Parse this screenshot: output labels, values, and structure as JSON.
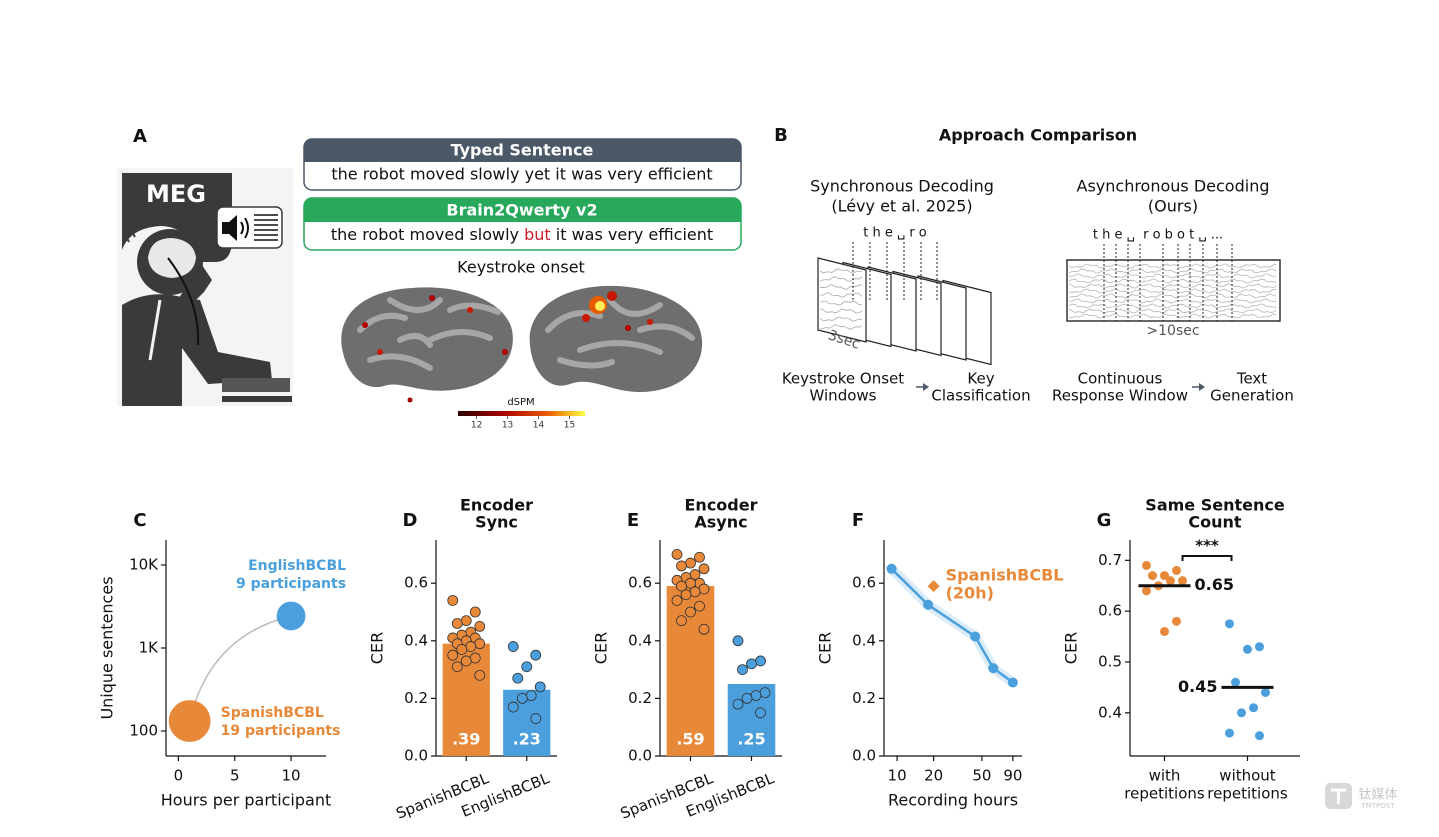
{
  "panel_a": {
    "label": "A",
    "illustration_label": "MEG",
    "typed": {
      "title": "Typed Sentence",
      "text": "the robot moved slowly yet it was very efficient"
    },
    "decoded": {
      "title": "Brain2Qwerty v2",
      "segments": [
        "the robot moved slowly",
        "but",
        "it was very efficient"
      ]
    },
    "brain_title": "Keystroke onset",
    "colorbar": {
      "label": "dSPM",
      "lim": [
        11.4,
        15.5
      ],
      "ticks": [
        12,
        13,
        14,
        15
      ]
    }
  },
  "panel_b": {
    "label": "B",
    "title": "Approach Comparison",
    "sync": {
      "title": [
        "Synchronous Decoding",
        "(Lévy et al. 2025)"
      ],
      "letters": "t h e ␣ r o",
      "window": "3sec",
      "steps": [
        [
          "Keystroke Onset",
          "Windows"
        ],
        [
          "Key",
          "Classification"
        ]
      ]
    },
    "async": {
      "title": [
        "Asynchronous Decoding",
        "(Ours)"
      ],
      "letters": "t h e ␣  r o b o t ␣ ...",
      "window": ">10sec",
      "steps": [
        [
          "Continuous",
          "Response Window"
        ],
        [
          "Text",
          "Generation"
        ]
      ]
    }
  },
  "chart_data": [
    {
      "type": "scatter",
      "label": "C",
      "xlabel": "Hours per participant",
      "ylabel": "Unique sentences",
      "xlim": [
        -1.1,
        13.1
      ],
      "xticks": [
        0,
        5,
        10
      ],
      "ylog": true,
      "ylim": [
        50,
        20000
      ],
      "yticks": [
        100,
        {
          "value": 1000,
          "label": "1K"
        },
        {
          "value": 10000,
          "label": "10K"
        }
      ],
      "series": [
        {
          "name": "SpanishBCBL",
          "color": "#e8893a",
          "x": [
            1
          ],
          "values": [
            132
          ],
          "participants": [
            19
          ],
          "participants_labels": [
            "19 participants"
          ]
        },
        {
          "name": "EnglishBCBL",
          "color": "#4a9fdc",
          "x": [
            10
          ],
          "values": [
            2430
          ],
          "participants": [
            9
          ],
          "participants_labels": [
            "9 participants"
          ]
        }
      ]
    },
    {
      "type": "bar",
      "label": "D",
      "title": [
        "Encoder",
        "Sync"
      ],
      "ylabel": "CER",
      "categories": [
        "SpanishBCBL",
        "EnglishBCBL"
      ],
      "values": [
        0.39,
        0.23
      ],
      "value_labels": [
        ".39",
        ".23"
      ],
      "colors": [
        "#e8893a",
        "#4a9fdc"
      ],
      "points": [
        [
          0.54,
          0.5,
          0.47,
          0.46,
          0.45,
          0.43,
          0.42,
          0.41,
          0.41,
          0.4,
          0.39,
          0.39,
          0.38,
          0.37,
          0.35,
          0.34,
          0.33,
          0.31,
          0.28
        ],
        [
          0.38,
          0.35,
          0.31,
          0.27,
          0.24,
          0.21,
          0.2,
          0.17,
          0.13
        ]
      ],
      "ylim": [
        0,
        0.75
      ],
      "yticks": [
        {
          "value": 0,
          "label": "0.0"
        },
        0.2,
        0.4,
        0.6
      ]
    },
    {
      "type": "bar",
      "label": "E",
      "title": [
        "Encoder",
        "Async"
      ],
      "ylabel": "CER",
      "categories": [
        "SpanishBCBL",
        "EnglishBCBL"
      ],
      "values": [
        0.59,
        0.25
      ],
      "value_labels": [
        ".59",
        ".25"
      ],
      "colors": [
        "#e8893a",
        "#4a9fdc"
      ],
      "points": [
        [
          0.7,
          0.69,
          0.67,
          0.66,
          0.65,
          0.63,
          0.62,
          0.61,
          0.6,
          0.6,
          0.59,
          0.58,
          0.57,
          0.56,
          0.54,
          0.52,
          0.5,
          0.47,
          0.44
        ],
        [
          0.4,
          0.33,
          0.32,
          0.3,
          0.22,
          0.21,
          0.2,
          0.18,
          0.15
        ]
      ],
      "ylim": [
        0,
        0.75
      ],
      "yticks": [
        {
          "value": 0,
          "label": "0.0"
        },
        0.2,
        0.4,
        0.6
      ]
    },
    {
      "type": "line",
      "label": "F",
      "xlabel": "Recording hours",
      "ylabel": "CER",
      "xlog": true,
      "xlim": [
        7.8,
        107
      ],
      "xticks": [
        10,
        20,
        50,
        90
      ],
      "x": [
        9,
        18,
        44,
        62,
        90
      ],
      "values": [
        0.65,
        0.525,
        0.415,
        0.305,
        0.255
      ],
      "color": "#4a9fdc",
      "highlight": {
        "name": [
          "SpanishBCBL",
          "(20h)"
        ],
        "x": 20,
        "value": 0.59,
        "color": "#e8893a"
      },
      "ylim": [
        0,
        0.75
      ],
      "yticks": [
        {
          "value": 0,
          "label": "0.0"
        },
        0.2,
        0.4,
        0.6
      ]
    },
    {
      "type": "strip",
      "label": "G",
      "title": [
        "Same Sentence",
        "Count"
      ],
      "ylabel": "CER",
      "categories": [
        [
          "with",
          "repetitions"
        ],
        [
          "without",
          "repetitions"
        ]
      ],
      "values": [
        0.65,
        0.45
      ],
      "colors": [
        "#e8893a",
        "#4a9fdc"
      ],
      "points": [
        [
          0.69,
          0.68,
          0.67,
          0.67,
          0.66,
          0.66,
          0.65,
          0.64,
          0.58,
          0.56
        ],
        [
          0.575,
          0.53,
          0.525,
          0.46,
          0.44,
          0.41,
          0.4,
          0.36,
          0.355
        ]
      ],
      "significance": "***",
      "ylim": [
        0.315,
        0.74
      ],
      "yticks": [
        0.4,
        0.5,
        0.6,
        0.7
      ]
    }
  ],
  "watermark": {
    "name": "钛媒体",
    "sub": "TMTPOST"
  }
}
